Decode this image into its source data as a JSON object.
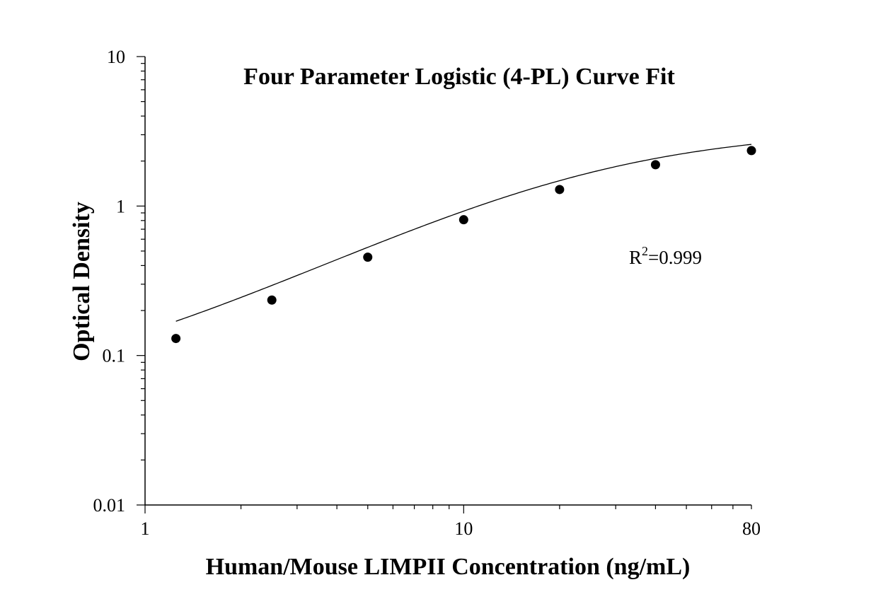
{
  "chart_data": {
    "type": "scatter",
    "title": "Four Parameter Logistic (4-PL) Curve Fit",
    "xlabel": "Human/Mouse LIMPII Concentration (ng/mL)",
    "ylabel": "Optical Density",
    "xscale": "log",
    "yscale": "log",
    "xlim": [
      1,
      80
    ],
    "ylim": [
      0.01,
      10
    ],
    "x_ticks": [
      {
        "value": 1,
        "label": "1"
      },
      {
        "value": 10,
        "label": "10"
      },
      {
        "value": 80,
        "label": "80"
      }
    ],
    "y_ticks": [
      {
        "value": 10,
        "label": "10"
      },
      {
        "value": 1,
        "label": "1"
      },
      {
        "value": 0.1,
        "label": "0.1"
      },
      {
        "value": 0.01,
        "label": "0.01"
      }
    ],
    "grid": false,
    "legend": "none",
    "series": [
      {
        "x": [
          1.25,
          2.5,
          5,
          10,
          20,
          40,
          80
        ],
        "y": [
          0.13,
          0.235,
          0.455,
          0.81,
          1.29,
          1.89,
          2.35
        ]
      }
    ],
    "fit": {
      "model": "4-PL",
      "a": 0.05,
      "d": 3.3,
      "c": 25,
      "b": 1.09
    },
    "annotations": {
      "r2_base": "R",
      "r2_sup": "2",
      "r2_value": "=0.999"
    }
  }
}
